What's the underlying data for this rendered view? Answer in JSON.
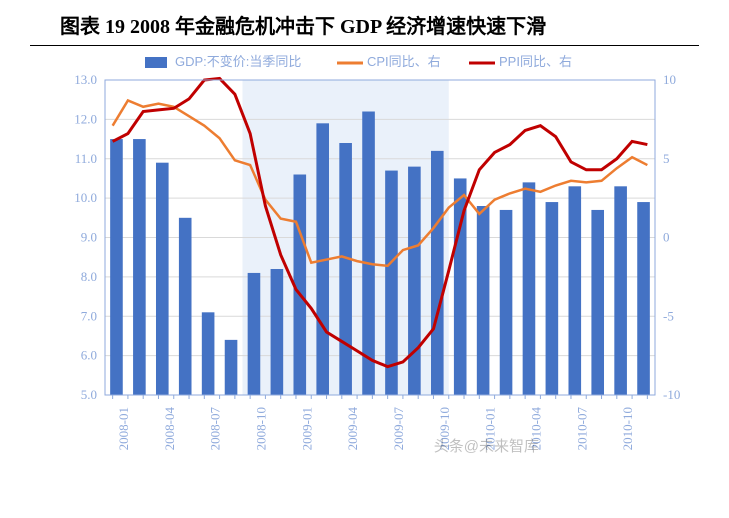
{
  "title": "图表 19 2008 年金融危机冲击下 GDP 经济增速快速下滑",
  "watermark": "头条@未来智库",
  "chart": {
    "type": "bar+line-dual-axis",
    "x_categories": [
      "2008-01",
      "2008-04",
      "2008-07",
      "2008-10",
      "2009-01",
      "2009-04",
      "2009-07",
      "2009-10",
      "2010-01",
      "2010-04",
      "2010-07",
      "2010-10",
      ""
    ],
    "x_label_rotation": -90,
    "y_left": {
      "min": 5.0,
      "max": 13.0,
      "ticks": [
        5.0,
        6.0,
        7.0,
        8.0,
        9.0,
        10.0,
        11.0,
        12.0,
        13.0
      ],
      "fontsize": 13,
      "color": "#8faadc"
    },
    "y_right": {
      "min": -10,
      "max": 10,
      "ticks": [
        -10,
        -5,
        0,
        5,
        10
      ],
      "fontsize": 13,
      "color": "#8faadc"
    },
    "background_color": "#ffffff",
    "shaded_region": {
      "x_start_idx": 3,
      "x_end_idx": 7.5,
      "color": "#eaf1fa"
    },
    "grid_color": "#d9d9d9",
    "border_color": "#8faadc",
    "series_bar": {
      "label": "GDP:不变价:当季同比",
      "color": "#4472c4",
      "bar_width": 0.55,
      "values": [
        11.5,
        11.5,
        10.9,
        9.5,
        7.1,
        6.4,
        8.1,
        8.2,
        10.6,
        11.9,
        11.4,
        12.2,
        10.7,
        10.8,
        11.2,
        10.5,
        9.8,
        9.7,
        10.4,
        9.9,
        10.3,
        9.7,
        10.3,
        9.9
      ]
    },
    "series_line1": {
      "label": "CPI同比、右",
      "color": "#ed7d31",
      "line_width": 2.5,
      "axis": "right",
      "values": [
        7.1,
        8.7,
        8.3,
        8.5,
        8.3,
        7.7,
        7.1,
        6.3,
        4.9,
        4.6,
        2.4,
        1.2,
        1.0,
        -1.6,
        -1.4,
        -1.2,
        -1.5,
        -1.7,
        -1.8,
        -0.8,
        -0.5,
        0.6,
        1.9,
        2.7,
        1.5,
        2.4,
        2.8,
        3.1,
        2.9,
        3.3,
        3.6,
        3.5,
        3.6,
        4.4,
        5.1,
        4.6
      ]
    },
    "series_line2": {
      "label": "PPI同比、右",
      "color": "#c00000",
      "line_width": 3,
      "axis": "right",
      "values": [
        6.1,
        6.6,
        8.0,
        8.1,
        8.2,
        8.8,
        10.0,
        10.1,
        9.1,
        6.6,
        2.0,
        -1.1,
        -3.3,
        -4.5,
        -6.0,
        -6.6,
        -7.2,
        -7.8,
        -8.2,
        -7.9,
        -7.0,
        -5.8,
        -2.1,
        1.7,
        4.3,
        5.4,
        5.9,
        6.8,
        7.1,
        6.4,
        4.8,
        4.3,
        4.3,
        5.0,
        6.1,
        5.9
      ]
    },
    "legend": {
      "position": "top-center",
      "box": false,
      "items": [
        {
          "type": "rect",
          "color": "#4472c4",
          "label": "GDP:不变价:当季同比"
        },
        {
          "type": "line",
          "color": "#ed7d31",
          "label": "CPI同比、右"
        },
        {
          "type": "line",
          "color": "#c00000",
          "label": "PPI同比、右"
        }
      ]
    }
  }
}
